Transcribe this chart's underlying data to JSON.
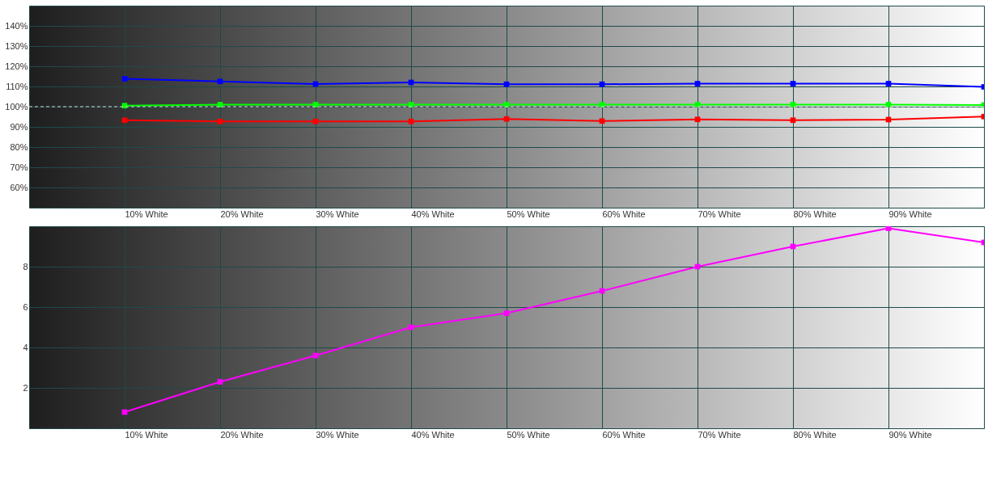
{
  "chart_data": [
    {
      "type": "line",
      "categories": [
        "10% White",
        "20% White",
        "30% White",
        "40% White",
        "50% White",
        "60% White",
        "70% White",
        "80% White",
        "90% White",
        null
      ],
      "series": [
        {
          "color": "#0000ff",
          "values": [
            113.8,
            112.5,
            111.2,
            112.0,
            111.1,
            111.1,
            111.4,
            111.4,
            111.4,
            109.8
          ]
        },
        {
          "color": "#00ff00",
          "values": [
            100.5,
            101.0,
            101.0,
            101.0,
            101.0,
            101.0,
            101.0,
            101.0,
            101.0,
            100.8
          ]
        },
        {
          "color": "#ff0000",
          "values": [
            93.3,
            92.7,
            92.7,
            92.7,
            93.9,
            92.9,
            93.7,
            93.3,
            93.6,
            95.1
          ]
        }
      ],
      "ylim": [
        50,
        150
      ],
      "yticks": [
        {
          "value": 60,
          "label": "60%"
        },
        {
          "value": 70,
          "label": "70%"
        },
        {
          "value": 80,
          "label": "80%"
        },
        {
          "value": 90,
          "label": "90%"
        },
        {
          "value": 100,
          "label": "100%"
        },
        {
          "value": 110,
          "label": "110%"
        },
        {
          "value": 120,
          "label": "120%"
        },
        {
          "value": 130,
          "label": "130%"
        },
        {
          "value": 140,
          "label": "140%"
        }
      ],
      "ref_lines": [
        {
          "axis": "y",
          "value": 100,
          "line_style": "dashed"
        }
      ],
      "grid": true,
      "marker": "square",
      "line_style": "solid"
    },
    {
      "type": "line",
      "categories": [
        "10% White",
        "20% White",
        "30% White",
        "40% White",
        "50% White",
        "60% White",
        "70% White",
        "80% White",
        "90% White",
        null
      ],
      "series": [
        {
          "color": "#ff00ff",
          "values": [
            0.8,
            2.3,
            3.6,
            5.0,
            5.7,
            6.8,
            8.0,
            9.0,
            9.9,
            9.2
          ]
        }
      ],
      "ylim": [
        0,
        10
      ],
      "yticks": [
        2,
        4,
        6,
        8
      ],
      "grid": true,
      "marker": "square",
      "line_style": "solid"
    }
  ]
}
